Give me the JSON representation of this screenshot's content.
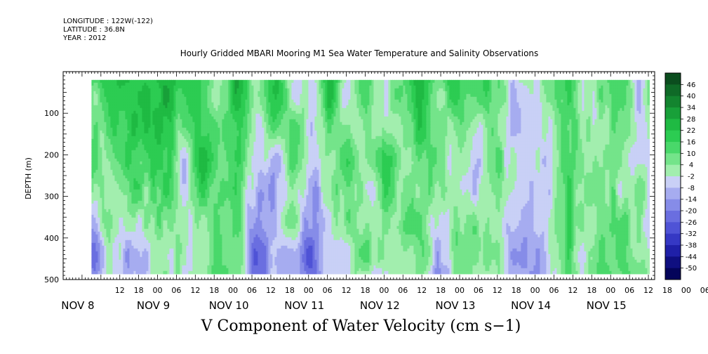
{
  "header": {
    "longitude": "LONGITUDE : 122W(-122)",
    "latitude": "LATITUDE : 36.8N",
    "year": "YEAR : 2012"
  },
  "chart_data": {
    "type": "heatmap",
    "title": "Hourly Gridded MBARI Mooring M1 Sea Water Temperature and Salinity Observations",
    "xlabel": "V Component of Water Velocity (cm s−1)",
    "ylabel": "DEPTH (m)",
    "x_hour_ticks": [
      "12",
      "18",
      "00",
      "06",
      "12",
      "18",
      "00",
      "06",
      "12",
      "18",
      "00",
      "06",
      "12",
      "18",
      "00",
      "06",
      "12",
      "18",
      "00",
      "06",
      "12",
      "18",
      "00",
      "06",
      "12",
      "18",
      "00",
      "06",
      "12",
      "18",
      "00",
      "06"
    ],
    "x_day_labels": [
      "NOV  8",
      "NOV  9",
      "NOV 10",
      "NOV 11",
      "NOV 12",
      "NOV 13",
      "NOV 14",
      "NOV 15"
    ],
    "xlim_hours_from_nov8_00": [
      -6,
      182
    ],
    "y_ticks": [
      100,
      200,
      300,
      400,
      500
    ],
    "ylim": [
      500,
      0
    ],
    "data_extent": {
      "time_hours_from_nov8_00": [
        3,
        180
      ],
      "depth_m": [
        20,
        485
      ]
    },
    "colorbar": {
      "levels": [
        "46",
        "40",
        "34",
        "28",
        "22",
        "16",
        "10",
        "4",
        "-2",
        "-8",
        "-14",
        "-20",
        "-26",
        "-32",
        "-38",
        "-44",
        "-50"
      ],
      "colors": [
        "#0b4d1e",
        "#0f6a27",
        "#13842f",
        "#18a039",
        "#1fba43",
        "#2ccc52",
        "#49d86a",
        "#74e48a",
        "#a2eeae",
        "#c9d0f6",
        "#a6acf0",
        "#868ce8",
        "#6a6ee0",
        "#4f53d6",
        "#3538c4",
        "#1f20a8",
        "#0f0f80",
        "#04045a"
      ]
    }
  }
}
